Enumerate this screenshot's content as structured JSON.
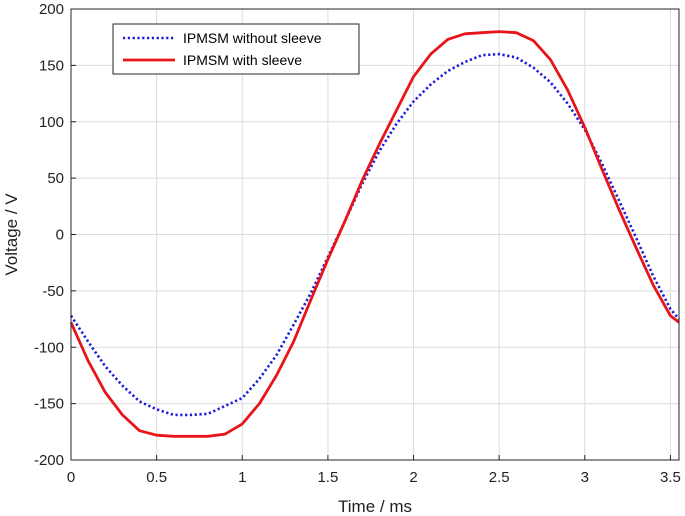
{
  "chart_data": {
    "type": "line",
    "title": "",
    "xlabel": "Time / ms",
    "ylabel": "Voltage / V",
    "xlim": [
      0,
      3.55
    ],
    "ylim": [
      -200,
      200
    ],
    "xticks": [
      0,
      0.5,
      1,
      1.5,
      2,
      2.5,
      3,
      3.5
    ],
    "xtick_labels": [
      "0",
      "0.5",
      "1",
      "1.5",
      "2",
      "2.5",
      "3",
      "3.5"
    ],
    "yticks": [
      -200,
      -150,
      -100,
      -50,
      0,
      50,
      100,
      150,
      200
    ],
    "ytick_labels": [
      "-200",
      "-150",
      "-100",
      "-50",
      "0",
      "50",
      "100",
      "150",
      "200"
    ],
    "grid": true,
    "legend_position": "top-left",
    "series": [
      {
        "name": "IPMSM without sleeve",
        "color": "#1a1adb",
        "style": "dotted",
        "x": [
          0,
          0.1,
          0.2,
          0.3,
          0.4,
          0.5,
          0.6,
          0.7,
          0.8,
          0.9,
          1.0,
          1.1,
          1.2,
          1.3,
          1.4,
          1.5,
          1.6,
          1.7,
          1.8,
          1.9,
          2.0,
          2.1,
          2.2,
          2.3,
          2.4,
          2.5,
          2.6,
          2.7,
          2.8,
          2.9,
          3.0,
          3.1,
          3.2,
          3.3,
          3.4,
          3.5,
          3.55
        ],
        "y": [
          -72,
          -95,
          -117,
          -134,
          -148,
          -155,
          -160,
          -160,
          -159,
          -152,
          -145,
          -128,
          -107,
          -80,
          -52,
          -20,
          12,
          45,
          74,
          98,
          118,
          133,
          145,
          153,
          159,
          160,
          157,
          148,
          135,
          116,
          93,
          63,
          30,
          -3,
          -37,
          -66,
          -75
        ]
      },
      {
        "name": "IPMSM with sleeve",
        "color": "#e8141a",
        "style": "solid",
        "x": [
          0,
          0.1,
          0.2,
          0.3,
          0.4,
          0.5,
          0.6,
          0.7,
          0.8,
          0.9,
          1.0,
          1.1,
          1.2,
          1.3,
          1.4,
          1.5,
          1.6,
          1.7,
          1.8,
          1.9,
          2.0,
          2.1,
          2.2,
          2.3,
          2.4,
          2.5,
          2.6,
          2.7,
          2.8,
          2.9,
          3.0,
          3.1,
          3.2,
          3.3,
          3.4,
          3.5,
          3.55
        ],
        "y": [
          -78,
          -112,
          -140,
          -160,
          -174,
          -178,
          -179,
          -179,
          -179,
          -177,
          -168,
          -150,
          -125,
          -95,
          -58,
          -22,
          12,
          48,
          80,
          110,
          140,
          160,
          173,
          178,
          179,
          180,
          179,
          172,
          155,
          128,
          95,
          58,
          22,
          -12,
          -45,
          -72,
          -78
        ]
      }
    ]
  }
}
